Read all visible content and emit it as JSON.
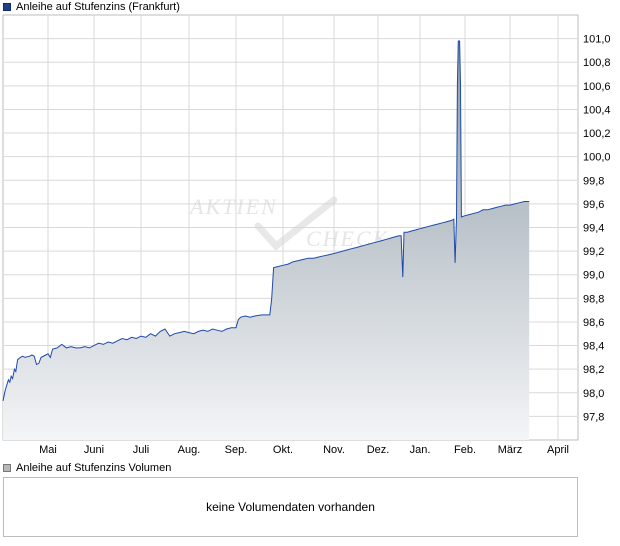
{
  "legend": {
    "price_label": "Anleihe auf Stufenzins (Frankfurt)",
    "volume_label": "Anleihe auf Stufenzins Volumen",
    "price_color": "#1f3f8a",
    "volume_color": "#b9b9b9"
  },
  "watermark": {
    "line1": "AKTIEN",
    "line2": "CHECK"
  },
  "volume": {
    "empty_text": "keine Volumendaten vorhanden"
  },
  "chart_data": {
    "type": "area",
    "x_tick_labels": [
      "Mai",
      "Juni",
      "Juli",
      "Aug.",
      "Sep.",
      "Okt.",
      "Nov.",
      "Dez.",
      "Jan.",
      "Feb.",
      "März",
      "April"
    ],
    "y_ticks": [
      "97,8",
      "98,0",
      "98,2",
      "98,4",
      "98,6",
      "98,8",
      "99,0",
      "99,2",
      "99,4",
      "99,6",
      "99,8",
      "100,0",
      "100,2",
      "100,4",
      "100,6",
      "100,8",
      "101,0"
    ],
    "ylim": [
      97.6,
      101.2
    ],
    "grid": true,
    "line_color": "#1f4aa8",
    "fill_top_color": "#8d9ba6",
    "fill_bottom_color": "#f4f5f7",
    "series": [
      {
        "t": [
          0,
          0.02,
          0.04,
          0.06,
          0.08,
          0.1,
          0.12,
          0.14,
          0.16,
          0.18,
          0.2,
          0.22,
          0.24,
          0.26,
          0.28,
          0.3,
          0.32,
          0.34,
          0.36,
          0.38,
          0.4,
          0.42,
          0.44,
          0.46,
          0.48,
          0.5,
          0.52,
          0.53,
          0.55,
          0.57,
          0.6,
          0.62,
          0.64,
          0.66,
          0.68,
          0.7,
          0.72,
          0.74,
          0.76,
          0.78,
          0.8,
          0.82,
          0.84,
          0.86,
          0.88,
          0.9,
          0.92,
          0.94,
          0.96,
          0.98,
          1.0,
          1.02,
          1.04,
          1.06,
          1.08,
          1.1,
          1.12,
          1.14,
          1.16,
          1.18,
          1.2,
          1.22,
          1.24,
          1.26,
          1.28,
          1.3,
          1.32,
          1.34,
          1.36,
          1.38,
          1.4,
          1.42,
          1.44,
          1.46,
          1.48,
          1.5,
          1.52,
          1.54,
          1.56,
          1.58,
          1.6,
          1.62,
          1.64,
          1.66,
          1.68,
          1.7,
          1.72,
          1.74,
          1.76,
          1.78,
          1.8,
          1.82,
          1.84,
          1.86,
          1.88,
          1.9,
          1.92,
          1.94,
          1.96,
          1.98,
          2.0,
          2.02,
          2.04,
          2.06,
          2.08,
          2.1,
          2.12,
          2.14,
          2.16,
          2.18,
          2.2,
          2.22,
          2.24,
          2.26,
          2.28,
          2.3,
          2.32,
          2.34,
          2.36,
          2.38,
          2.4,
          2.42,
          2.44,
          2.46,
          2.48,
          2.5,
          2.52,
          2.54,
          2.56,
          2.58,
          2.6,
          2.62,
          2.64,
          2.66,
          2.68,
          2.7,
          2.72,
          2.74,
          2.76,
          2.78,
          2.8,
          2.82,
          2.84,
          2.86,
          2.88,
          2.9,
          2.92,
          2.94,
          2.96,
          2.98,
          3.0,
          3.02,
          3.04,
          3.06,
          3.08,
          3.1,
          3.12,
          3.14,
          3.16,
          3.18,
          3.2,
          3.22,
          3.24,
          3.26,
          3.28,
          3.3,
          3.32,
          3.34,
          3.36,
          3.38,
          3.4,
          3.42,
          3.44,
          3.46,
          3.48,
          3.5,
          3.52,
          3.54,
          3.56,
          3.58,
          3.6,
          3.62,
          3.64,
          3.66,
          3.68,
          3.7,
          3.72,
          3.74,
          3.76,
          3.78,
          3.8,
          3.82,
          3.84,
          3.86,
          3.88,
          3.9,
          3.92,
          3.94,
          3.96,
          3.98,
          4.0,
          4.02,
          4.04,
          4.06,
          4.08,
          4.1,
          4.12,
          4.14,
          4.16,
          4.18,
          4.2,
          4.22,
          4.24,
          4.26,
          4.28,
          4.3,
          4.32,
          4.34,
          4.36,
          4.38,
          4.4,
          4.42,
          4.44,
          4.46,
          4.48,
          4.5,
          4.52,
          4.54,
          4.56,
          4.58,
          4.6,
          4.62,
          4.64,
          4.66,
          4.68,
          4.7,
          4.72,
          4.74,
          4.76,
          4.78,
          4.8,
          4.82,
          4.84,
          4.86,
          4.88,
          4.9,
          4.92,
          4.94,
          4.96,
          4.98,
          5.0,
          5.02,
          5.04,
          5.06,
          5.08,
          5.1,
          5.12,
          5.14,
          5.16,
          5.18,
          5.2,
          5.22,
          5.24,
          5.26,
          5.28,
          5.3,
          5.32,
          5.34,
          5.36,
          5.38,
          5.4,
          5.42,
          5.44,
          5.46,
          5.48,
          5.5,
          5.52,
          5.54,
          5.56,
          5.58,
          5.6,
          5.62,
          5.64,
          5.66,
          5.68,
          5.7,
          5.72,
          5.74,
          5.76,
          5.78,
          5.8,
          5.82,
          5.84,
          5.86,
          5.88,
          5.9,
          5.92,
          5.94,
          5.96,
          5.98,
          6.0,
          6.02,
          6.04,
          6.06,
          6.08,
          6.1,
          6.12,
          6.14,
          6.16,
          6.18,
          6.2,
          6.22,
          6.24,
          6.26,
          6.28,
          6.3,
          6.32,
          6.34,
          6.36,
          6.38,
          6.4,
          6.42,
          6.44,
          6.46,
          6.48,
          6.5,
          6.52,
          6.54,
          6.56,
          6.58,
          6.6,
          6.62,
          6.64,
          6.66,
          6.68,
          6.7,
          6.72,
          6.74,
          6.76,
          6.78,
          6.8,
          6.82,
          6.84,
          6.86,
          6.88,
          6.9,
          6.92,
          6.94,
          6.96,
          6.98,
          7.0,
          7.02,
          7.04,
          7.06,
          7.08,
          7.1,
          7.12,
          7.14,
          7.16,
          7.18,
          7.2,
          7.22,
          7.24,
          7.26,
          7.28,
          7.3,
          7.32,
          7.34,
          7.36,
          7.38,
          7.4,
          7.42,
          7.44,
          7.46,
          7.48,
          7.5,
          7.52,
          7.54,
          7.56,
          7.58,
          7.6,
          7.62,
          7.64,
          7.66,
          7.68,
          7.7,
          7.72,
          7.74,
          7.76,
          7.78,
          7.8,
          7.82,
          7.84,
          7.86,
          7.88,
          7.9,
          7.92,
          7.94,
          7.96,
          7.98,
          8.0,
          8.02,
          8.04,
          8.06,
          8.08,
          8.1,
          8.12,
          8.14,
          8.16,
          8.18,
          8.2,
          8.22,
          8.24,
          8.26,
          8.28,
          8.3,
          8.32,
          8.34,
          8.36,
          8.38,
          8.4,
          8.42,
          8.44,
          8.46,
          8.48,
          8.5,
          8.52,
          8.54,
          8.56,
          8.58,
          8.6,
          8.62,
          8.64,
          8.66,
          8.68,
          8.7,
          8.72,
          8.74,
          8.76,
          8.78,
          8.8,
          8.82,
          8.84,
          8.86,
          8.88,
          8.9,
          8.92,
          8.94,
          8.96,
          8.98,
          9.0,
          9.02,
          9.04,
          9.06,
          9.08,
          9.1,
          9.12,
          9.14,
          9.16,
          9.18,
          9.2,
          9.22,
          9.24,
          9.26,
          9.28,
          9.3,
          9.32,
          9.34,
          9.36,
          9.38,
          9.4,
          9.42,
          9.44,
          9.46,
          9.48,
          9.5,
          9.52,
          9.54,
          9.56,
          9.58,
          9.6,
          9.62,
          9.64,
          9.66,
          9.68,
          9.7,
          9.72,
          9.74,
          9.76,
          9.78,
          9.8,
          9.82,
          9.84,
          9.86,
          9.88,
          9.9,
          9.92,
          9.94,
          9.96,
          9.98,
          10.0,
          10.02,
          10.04,
          10.06,
          10.08,
          10.1,
          10.12,
          10.14,
          10.16,
          10.18,
          10.2,
          10.22,
          10.24,
          10.26,
          10.28,
          10.3,
          10.32,
          10.34,
          10.36,
          10.38,
          10.4,
          10.42,
          10.44,
          10.46,
          10.48,
          10.5,
          10.52,
          10.54,
          10.56,
          10.58,
          10.6,
          10.62,
          10.64,
          10.66,
          10.68,
          10.7,
          10.72,
          10.74,
          10.76,
          10.78,
          10.8,
          10.82,
          10.84,
          10.86,
          10.88,
          10.9,
          10.92,
          10.94,
          10.96,
          10.98,
          11.0,
          11.02,
          11.04,
          11.06,
          11.08,
          11.1,
          11.12,
          11.14,
          11.16,
          11.18,
          11.2,
          11.22,
          11.24,
          11.26,
          11.28,
          11.3,
          11.32,
          11.34,
          11.36,
          11.38,
          11.4,
          11.42,
          11.44,
          11.46,
          11.48,
          11.5,
          11.52,
          11.54,
          11.56,
          11.58,
          11.6,
          11.62,
          11.64,
          11.66,
          11.68,
          11.7,
          11.72,
          11.74,
          11.76,
          11.78,
          11.8,
          11.82,
          11.84,
          11.86,
          11.88,
          11.9,
          11.92,
          11.94,
          11.96,
          11.98,
          12.0,
          12.02,
          12.04,
          12.06,
          12.08,
          12.1,
          12.12,
          12.14,
          12.16,
          12.18,
          12.2,
          12.22,
          12.24,
          12.26,
          12.28,
          12.3,
          12.32,
          12.34,
          12.36,
          12.38,
          12.4,
          12.42,
          12.44,
          12.46,
          12.48,
          12.5,
          12.52,
          12.54,
          12.56,
          12.58,
          12.6,
          12.62,
          12.64,
          12.66,
          12.68,
          12.7,
          12.72
        ],
        "v": null
      }
    ]
  }
}
